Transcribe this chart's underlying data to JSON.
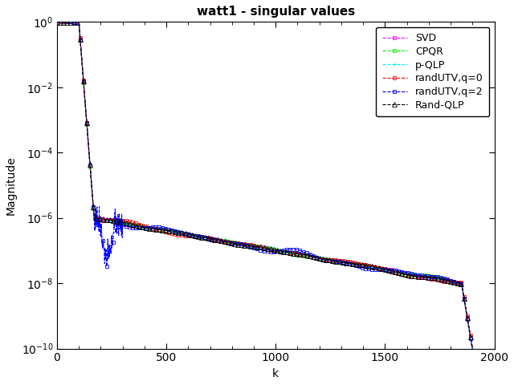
{
  "title": "watt1 - singular values",
  "xlabel": "k",
  "ylabel": "Magnitude",
  "xlim": [
    0,
    2000
  ],
  "ylim_log": [
    -10,
    0
  ],
  "series": [
    {
      "label": "SVD",
      "color": "#FF00FF",
      "linestyle": "--",
      "marker": "s",
      "markersize": 3,
      "linewidth": 0.8,
      "zorder": 3
    },
    {
      "label": "CPQR",
      "color": "#00EE00",
      "linestyle": "--",
      "marker": "s",
      "markersize": 3,
      "linewidth": 0.8,
      "zorder": 4
    },
    {
      "label": "p-QLP",
      "color": "#00EEEE",
      "linestyle": "--",
      "marker": "+",
      "markersize": 3,
      "linewidth": 0.8,
      "zorder": 5
    },
    {
      "label": "randUTV,q=0",
      "color": "#FF0000",
      "linestyle": "--",
      "marker": "s",
      "markersize": 3,
      "linewidth": 0.8,
      "zorder": 6
    },
    {
      "label": "randUTV,q=2",
      "color": "#0000FF",
      "linestyle": "--",
      "marker": "s",
      "markersize": 3,
      "linewidth": 0.8,
      "zorder": 7
    },
    {
      "label": "Rand-QLP",
      "color": "#000000",
      "linestyle": "--",
      "marker": "^",
      "markersize": 4,
      "linewidth": 0.8,
      "zorder": 8
    }
  ],
  "legend_fontsize": 9,
  "title_fontsize": 11,
  "axis_fontsize": 10
}
